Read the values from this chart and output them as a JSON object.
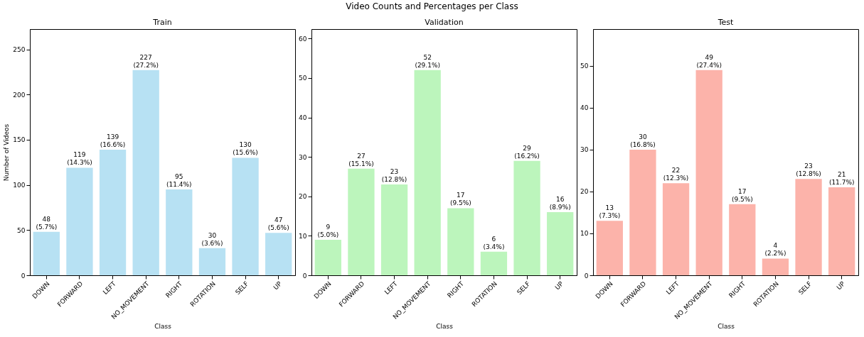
{
  "chart_data": [
    {
      "type": "bar",
      "title": "Train",
      "xlabel": "Class",
      "ylabel": "Number of Videos",
      "annotations": [
        "Video Counts and Percentages per Class"
      ],
      "categories": [
        "DOWN",
        "FORWARD",
        "LEFT",
        "NO_MOVEMENT",
        "RIGHT",
        "ROTATION",
        "SELF",
        "UP"
      ],
      "values": [
        48,
        119,
        139,
        227,
        95,
        30,
        130,
        47
      ],
      "value_labels": [
        "48\n(5.7%)",
        "119\n(14.3%)",
        "139\n(16.6%)",
        "227\n(27.2%)",
        "95\n(11.4%)",
        "30\n(3.6%)",
        "130\n(15.6%)",
        "47\n(5.6%)"
      ],
      "color": "#b7e1f3",
      "ylim": [
        0,
        272.4
      ],
      "yticks": [
        0,
        50,
        100,
        150,
        200,
        250
      ],
      "grid": false
    },
    {
      "type": "bar",
      "title": "Validation",
      "xlabel": "Class",
      "categories": [
        "DOWN",
        "FORWARD",
        "LEFT",
        "NO_MOVEMENT",
        "RIGHT",
        "ROTATION",
        "SELF",
        "UP"
      ],
      "values": [
        9,
        27,
        23,
        52,
        17,
        6,
        29,
        16
      ],
      "value_labels": [
        "9\n(5.0%)",
        "27\n(15.1%)",
        "23\n(12.8%)",
        "52\n(29.1%)",
        "17\n(9.5%)",
        "6\n(3.4%)",
        "29\n(16.2%)",
        "16\n(8.9%)"
      ],
      "color": "#bcf5bc",
      "ylim": [
        0,
        62.4
      ],
      "yticks": [
        0,
        10,
        20,
        30,
        40,
        50,
        60
      ],
      "grid": false
    },
    {
      "type": "bar",
      "title": "Test",
      "xlabel": "Class",
      "categories": [
        "DOWN",
        "FORWARD",
        "LEFT",
        "NO_MOVEMENT",
        "RIGHT",
        "ROTATION",
        "SELF",
        "UP"
      ],
      "values": [
        13,
        30,
        22,
        49,
        17,
        4,
        23,
        21
      ],
      "value_labels": [
        "13\n(7.3%)",
        "30\n(16.8%)",
        "22\n(12.3%)",
        "49\n(27.4%)",
        "17\n(9.5%)",
        "4\n(2.2%)",
        "23\n(12.8%)",
        "21\n(11.7%)"
      ],
      "color": "#fcb3aa",
      "ylim": [
        0,
        58.8
      ],
      "yticks": [
        0,
        10,
        20,
        30,
        40,
        50
      ],
      "grid": false
    }
  ]
}
